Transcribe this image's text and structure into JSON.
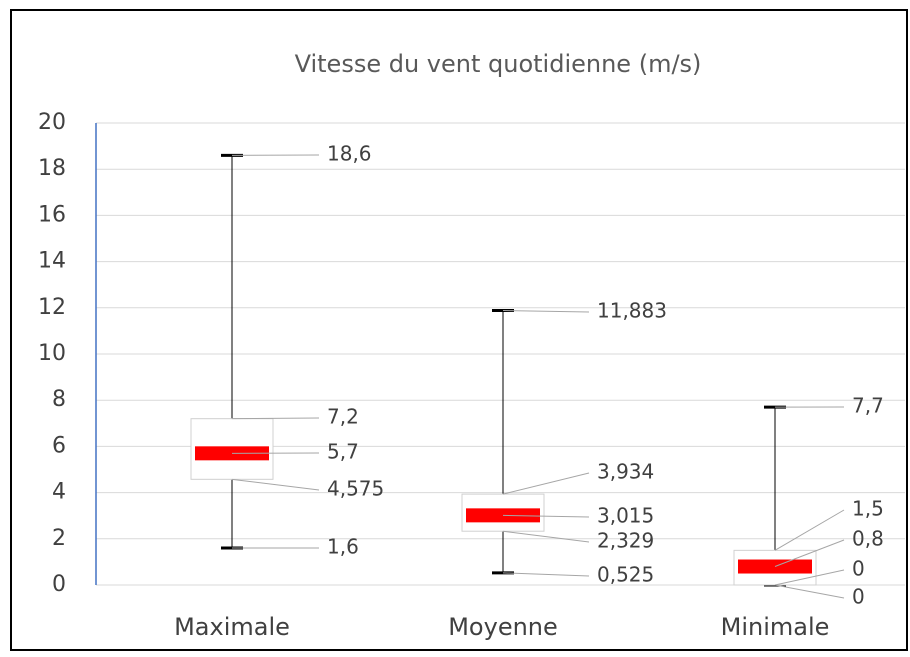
{
  "chart_data": {
    "type": "box",
    "title": "Vitesse du vent quotidienne (m/s)",
    "categories": [
      "Maximale",
      "Moyenne",
      "Minimale"
    ],
    "boxes": [
      {
        "min": 1.6,
        "q1": 4.575,
        "median": 5.7,
        "q3": 7.2,
        "max": 18.6,
        "value_labels": {
          "min": "1,6",
          "q1": "4,575",
          "median": "5,7",
          "q3": "7,2",
          "max": "18,6"
        }
      },
      {
        "min": 0.525,
        "q1": 2.329,
        "median": 3.015,
        "q3": 3.934,
        "max": 11.883,
        "value_labels": {
          "min": "0,525",
          "q1": "2,329",
          "median": "3,015",
          "q3": "3,934",
          "max": "11,883"
        }
      },
      {
        "min": 0,
        "q1": 0,
        "median": 0.8,
        "q3": 1.5,
        "max": 7.7,
        "value_labels": {
          "min": "0",
          "q1": "0",
          "median": "0,8",
          "q3": "1,5",
          "max": "7,7"
        }
      }
    ],
    "median_color": "#ff0000",
    "ylim": [
      0,
      20
    ],
    "yticks": [
      0,
      2,
      4,
      6,
      8,
      10,
      12,
      14,
      16,
      18,
      20
    ],
    "grid": true
  }
}
